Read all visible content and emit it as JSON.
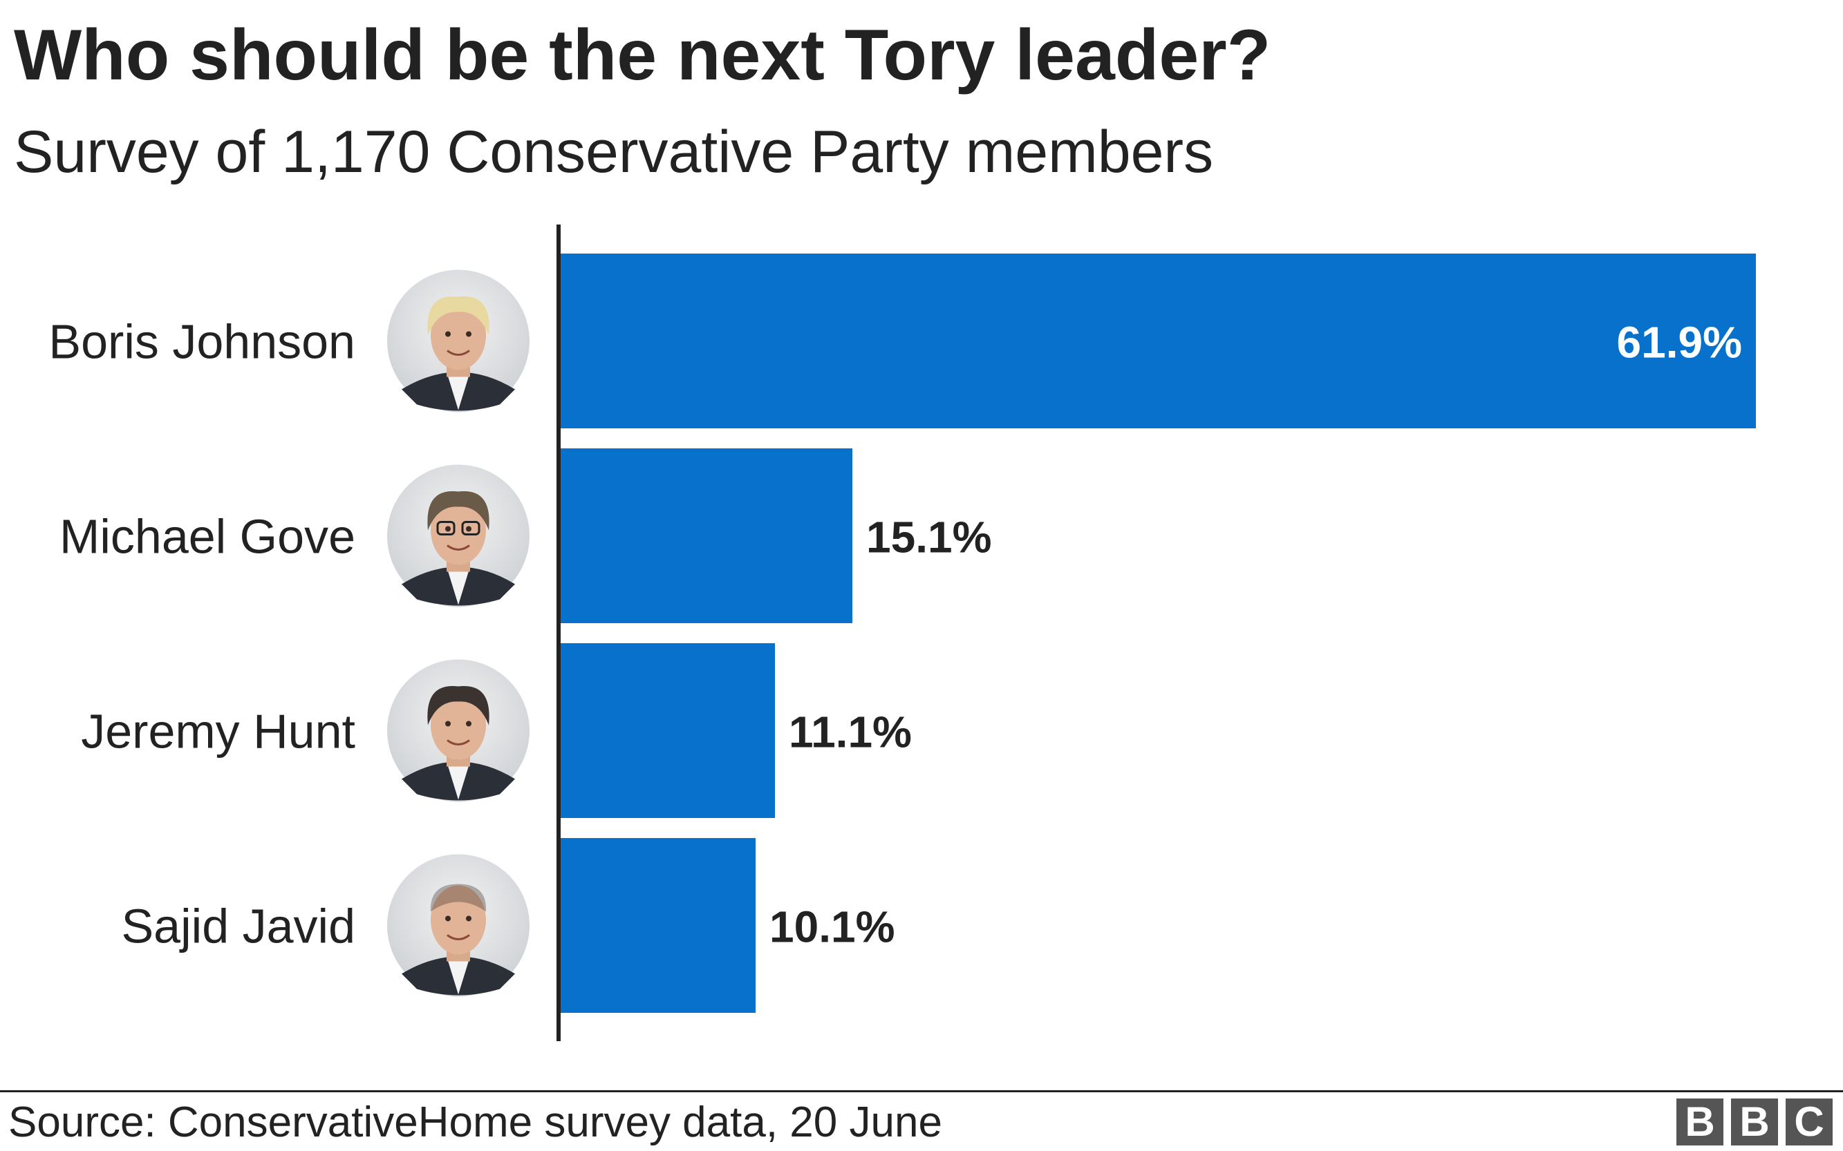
{
  "title": "Who should be the next Tory leader?",
  "subtitle": "Survey of 1,170 Conservative Party members",
  "source": "Source: ConservativeHome survey data, 20 June",
  "logo": [
    "B",
    "B",
    "C"
  ],
  "colors": {
    "bar": "#0871cb",
    "text": "#222222",
    "inside_label": "#ffffff"
  },
  "chart_data": {
    "type": "bar",
    "orientation": "horizontal",
    "categories": [
      "Boris Johnson",
      "Michael Gove",
      "Jeremy Hunt",
      "Sajid Javid"
    ],
    "values": [
      61.9,
      15.1,
      11.1,
      10.1
    ],
    "value_labels": [
      "61.9%",
      "15.1%",
      "11.1%",
      "10.1%"
    ],
    "category_icons": [
      "boris-johnson-portrait",
      "michael-gove-portrait",
      "jeremy-hunt-portrait",
      "sajid-javid-portrait"
    ],
    "title": "Who should be the next Tory leader?",
    "subtitle": "Survey of 1,170 Conservative Party members",
    "xlabel": "",
    "ylabel": "",
    "xlim": [
      0,
      61.9
    ],
    "grid": false,
    "legend": "none",
    "unit": "%"
  }
}
